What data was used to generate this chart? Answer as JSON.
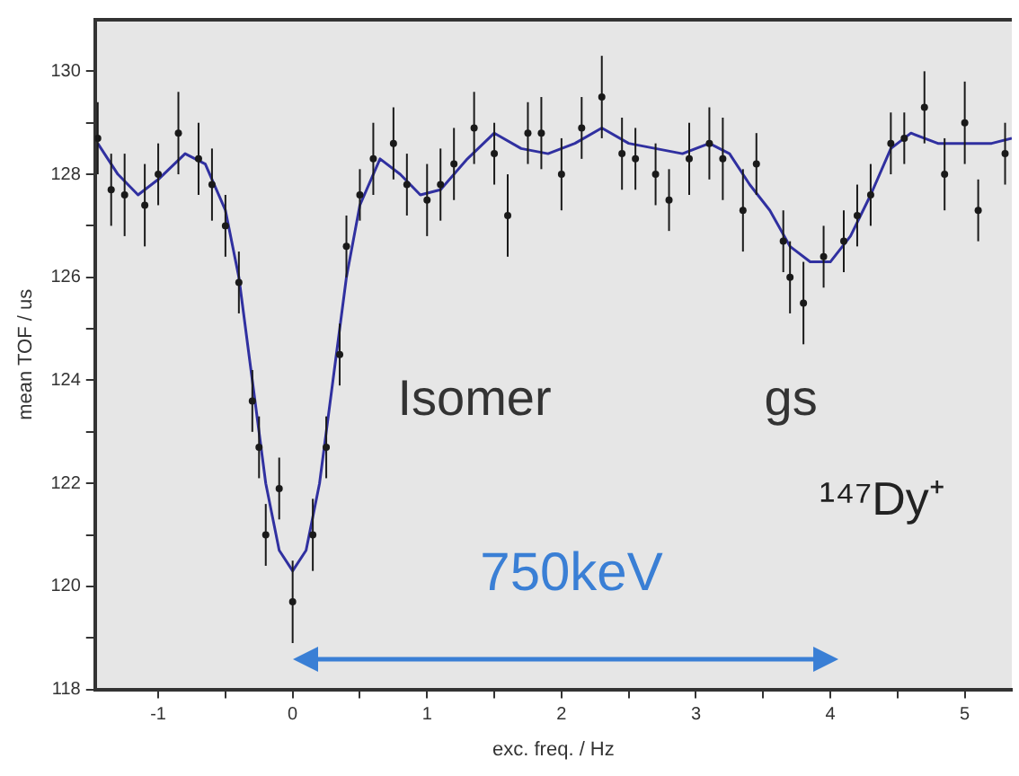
{
  "chart_data": {
    "type": "scatter",
    "xlabel": "exc. freq. / Hz",
    "ylabel": "mean TOF / us",
    "xlim": [
      -1.47,
      5.35
    ],
    "ylim": [
      118,
      131
    ],
    "xticks": [
      -1,
      {
        "value": -0.5,
        "label": null
      },
      0,
      {
        "value": 0.5,
        "label": null
      },
      1,
      {
        "value": 1.5,
        "label": null
      },
      2,
      {
        "value": 2.5,
        "label": null
      },
      3,
      {
        "value": 3.5,
        "label": null
      },
      4,
      {
        "value": 4.5,
        "label": null
      },
      5
    ],
    "yticks": [
      118,
      {
        "value": 119,
        "label": null
      },
      120,
      {
        "value": 121,
        "label": null
      },
      122,
      {
        "value": 123,
        "label": null
      },
      124,
      {
        "value": 125,
        "label": null
      },
      126,
      {
        "value": 127,
        "label": null
      },
      128,
      {
        "value": 129,
        "label": null
      },
      130
    ],
    "grid": false,
    "legend": false,
    "annotations": [
      "Isomer",
      "gs",
      "¹⁴⁷Dy⁺",
      "750keV"
    ],
    "series": [
      {
        "color": "#1a1a1a",
        "marker": "circle",
        "x": [
          -1.45,
          -1.35,
          -1.25,
          -1.1,
          -1.0,
          -0.85,
          -0.7,
          -0.6,
          -0.5,
          -0.4,
          -0.3,
          -0.25,
          -0.2,
          -0.1,
          0.0,
          0.15,
          0.25,
          0.35,
          0.4,
          0.5,
          0.6,
          0.75,
          0.85,
          1.0,
          1.1,
          1.2,
          1.35,
          1.5,
          1.6,
          1.75,
          1.85,
          2.0,
          2.15,
          2.3,
          2.45,
          2.55,
          2.7,
          2.8,
          2.95,
          3.1,
          3.2,
          3.35,
          3.45,
          3.65,
          3.7,
          3.8,
          3.95,
          4.1,
          4.2,
          4.3,
          4.45,
          4.55,
          4.7,
          4.85,
          5.0,
          5.1,
          5.3
        ],
        "values": [
          128.7,
          127.7,
          127.6,
          127.4,
          128.0,
          128.8,
          128.3,
          127.8,
          127.0,
          125.9,
          123.6,
          122.7,
          121.0,
          121.9,
          119.7,
          121.0,
          122.7,
          124.5,
          126.6,
          127.6,
          128.3,
          128.6,
          127.8,
          127.5,
          127.8,
          128.2,
          128.9,
          128.4,
          127.2,
          128.8,
          128.8,
          128.0,
          128.9,
          129.5,
          128.4,
          128.3,
          128.0,
          127.5,
          128.3,
          128.6,
          128.3,
          127.3,
          128.2,
          126.7,
          126.0,
          125.5,
          126.4,
          126.7,
          127.2,
          127.6,
          128.6,
          128.7,
          129.3,
          128.0,
          129.0,
          127.3,
          128.4
        ],
        "errors": [
          0.7,
          0.7,
          0.8,
          0.8,
          0.6,
          0.8,
          0.7,
          0.7,
          0.6,
          0.6,
          0.6,
          0.6,
          0.6,
          0.6,
          0.8,
          0.7,
          0.6,
          0.6,
          0.6,
          0.5,
          0.7,
          0.7,
          0.6,
          0.7,
          0.7,
          0.7,
          0.7,
          0.6,
          0.8,
          0.6,
          0.7,
          0.7,
          0.6,
          0.8,
          0.7,
          0.6,
          0.6,
          0.6,
          0.7,
          0.7,
          0.8,
          0.8,
          0.6,
          0.6,
          0.7,
          0.8,
          0.6,
          0.6,
          0.6,
          0.6,
          0.6,
          0.5,
          0.7,
          0.7,
          0.8,
          0.6,
          0.6
        ]
      },
      {
        "type": "line",
        "color": "#3030a0",
        "marker": "none",
        "line_style": "solid",
        "x": [
          -1.45,
          -1.3,
          -1.15,
          -1.0,
          -0.8,
          -0.65,
          -0.5,
          -0.4,
          -0.3,
          -0.2,
          -0.1,
          0.0,
          0.1,
          0.2,
          0.3,
          0.4,
          0.5,
          0.65,
          0.8,
          0.95,
          1.1,
          1.3,
          1.5,
          1.7,
          1.9,
          2.1,
          2.3,
          2.5,
          2.7,
          2.9,
          3.1,
          3.25,
          3.4,
          3.55,
          3.7,
          3.85,
          4.0,
          4.15,
          4.3,
          4.45,
          4.6,
          4.8,
          5.0,
          5.2,
          5.35
        ],
        "values": [
          128.6,
          128.0,
          127.6,
          127.9,
          128.4,
          128.2,
          127.3,
          126.0,
          124.0,
          122.0,
          120.7,
          120.3,
          120.7,
          122.0,
          124.0,
          126.0,
          127.4,
          128.3,
          128.0,
          127.6,
          127.7,
          128.3,
          128.8,
          128.5,
          128.4,
          128.6,
          128.9,
          128.6,
          128.5,
          128.4,
          128.6,
          128.4,
          127.8,
          127.3,
          126.6,
          126.3,
          126.3,
          126.8,
          127.6,
          128.5,
          128.8,
          128.6,
          128.6,
          128.6,
          128.7
        ]
      }
    ]
  }
}
